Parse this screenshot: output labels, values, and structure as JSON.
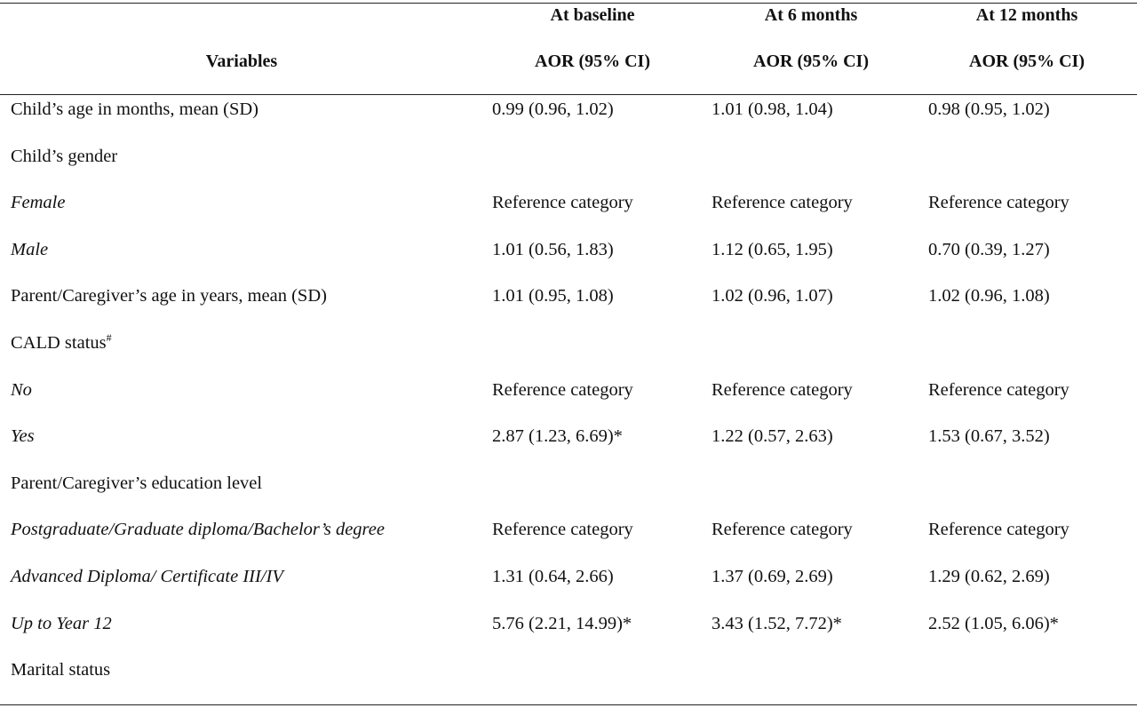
{
  "header": {
    "variables": "Variables",
    "col1_title": "At baseline",
    "col1_sub": "AOR (95% CI)",
    "col2_title": "At 6 months",
    "col2_sub": "AOR (95% CI)",
    "col3_title": "At 12 months",
    "col3_sub": "AOR (95% CI)"
  },
  "rows": [
    {
      "label": "Child’s age in months, mean (SD)",
      "italic": false,
      "sup": "",
      "baseline": "0.99 (0.96, 1.02)",
      "m6": "1.01 (0.98, 1.04)",
      "m12": "0.98 (0.95, 1.02)"
    },
    {
      "label": "Child’s gender",
      "italic": false,
      "sup": "",
      "baseline": "",
      "m6": "",
      "m12": ""
    },
    {
      "label": "Female",
      "italic": true,
      "sup": "",
      "baseline": "Reference category",
      "m6": "Reference category",
      "m12": "Reference category"
    },
    {
      "label": "Male",
      "italic": true,
      "sup": "",
      "baseline": "1.01 (0.56, 1.83)",
      "m6": "1.12 (0.65, 1.95)",
      "m12": "0.70 (0.39, 1.27)"
    },
    {
      "label": "Parent/Caregiver’s age in years, mean (SD)",
      "italic": false,
      "sup": "",
      "baseline": "1.01 (0.95, 1.08)",
      "m6": "1.02 (0.96, 1.07)",
      "m12": "1.02 (0.96, 1.08)"
    },
    {
      "label": "CALD status",
      "italic": false,
      "sup": "#",
      "baseline": "",
      "m6": "",
      "m12": ""
    },
    {
      "label": "No",
      "italic": true,
      "sup": "",
      "baseline": "Reference category",
      "m6": "Reference category",
      "m12": "Reference category"
    },
    {
      "label": "Yes",
      "italic": true,
      "sup": "",
      "baseline": "2.87 (1.23, 6.69)*",
      "m6": "1.22 (0.57, 2.63)",
      "m12": "1.53 (0.67, 3.52)"
    },
    {
      "label": "Parent/Caregiver’s education level",
      "italic": false,
      "sup": "",
      "baseline": "",
      "m6": "",
      "m12": ""
    },
    {
      "label": "Postgraduate/Graduate diploma/Bachelor’s degree",
      "italic": true,
      "sup": "",
      "baseline": "Reference category",
      "m6": "Reference category",
      "m12": "Reference category"
    },
    {
      "label": "Advanced Diploma/ Certificate III/IV",
      "italic": true,
      "sup": "",
      "baseline": "1.31 (0.64, 2.66)",
      "m6": "1.37 (0.69, 2.69)",
      "m12": "1.29 (0.62, 2.69)"
    },
    {
      "label": "Up to Year 12",
      "italic": true,
      "sup": "",
      "baseline": "5.76 (2.21, 14.99)*",
      "m6": "3.43 (1.52, 7.72)*",
      "m12": "2.52 (1.05, 6.06)*"
    },
    {
      "label": "Marital status",
      "italic": false,
      "sup": "",
      "baseline": "",
      "m6": "",
      "m12": ""
    }
  ]
}
